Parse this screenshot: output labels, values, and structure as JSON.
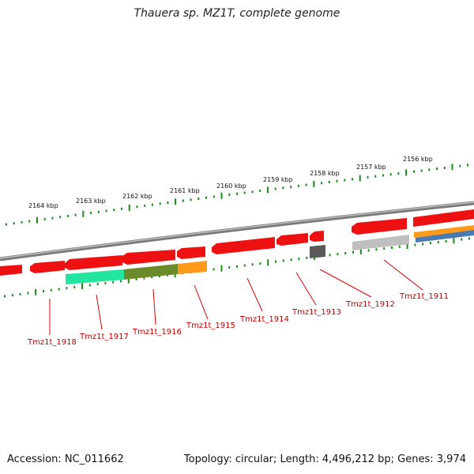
{
  "title": "Thauera sp. MZ1T, complete genome",
  "footer": {
    "accession": "Accession: NC_011662",
    "summary": "Topology: circular; Length: 4,496,212 bp; Genes: 3,974"
  },
  "colors": {
    "gene": "#ee1111",
    "backbone": "#808080",
    "tick": "#1a8c1a",
    "label": "#c00000"
  },
  "kbp_labels": [
    "2164 kbp",
    "2163 kbp",
    "2162 kbp",
    "2161 kbp",
    "2160 kbp",
    "2159 kbp",
    "2158 kbp",
    "2157 kbp",
    "2156 kbp"
  ],
  "gene_labels": [
    "Tmz1t_1918",
    "Tmz1t_1917",
    "Tmz1t_1916",
    "Tmz1t_1915",
    "Tmz1t_1914",
    "Tmz1t_1913",
    "Tmz1t_1912",
    "Tmz1t_1911"
  ]
}
